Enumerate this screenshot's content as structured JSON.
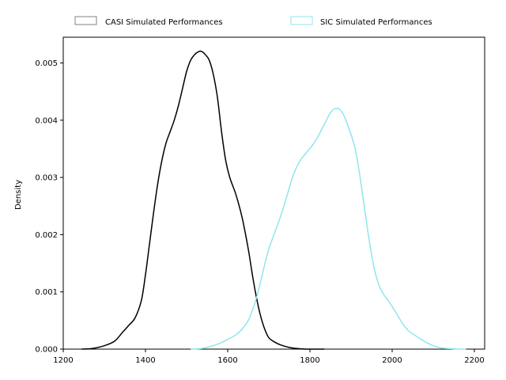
{
  "chart_data": {
    "type": "line",
    "title": "",
    "xlabel": "",
    "ylabel": "Density",
    "xlim": [
      1200,
      2225
    ],
    "ylim": [
      0,
      0.00545
    ],
    "x_ticks": [
      1200,
      1400,
      1600,
      1800,
      2000,
      2200
    ],
    "x_tick_labels": [
      "1200",
      "1400",
      "1600",
      "1800",
      "2000",
      "2200"
    ],
    "y_ticks": [
      0,
      0.001,
      0.002,
      0.003,
      0.004,
      0.005
    ],
    "y_tick_labels": [
      "0.000",
      "0.001",
      "0.002",
      "0.003",
      "0.004",
      "0.005"
    ],
    "legend_position": "top",
    "series": [
      {
        "name": "CASI Simulated Performances",
        "color": "#000000",
        "x": [
          1245,
          1270,
          1300,
          1325,
          1345,
          1360,
          1375,
          1390,
          1400,
          1410,
          1420,
          1430,
          1440,
          1450,
          1460,
          1470,
          1480,
          1490,
          1500,
          1510,
          1520,
          1530,
          1537,
          1545,
          1555,
          1565,
          1575,
          1585,
          1595,
          1605,
          1620,
          1635,
          1650,
          1660,
          1670,
          1680,
          1690,
          1700,
          1715,
          1730,
          1750,
          1770,
          1790,
          1810,
          1835
        ],
        "y": [
          0.0,
          1e-05,
          6e-05,
          0.00014,
          0.0003,
          0.00042,
          0.00055,
          0.00085,
          0.0013,
          0.00185,
          0.0024,
          0.0029,
          0.0033,
          0.0036,
          0.0038,
          0.004,
          0.00425,
          0.00455,
          0.00485,
          0.00505,
          0.00515,
          0.0052,
          0.0052,
          0.00515,
          0.00505,
          0.0048,
          0.0044,
          0.0038,
          0.0033,
          0.003,
          0.0027,
          0.0023,
          0.00175,
          0.0013,
          0.0009,
          0.00058,
          0.00035,
          0.0002,
          0.00012,
          7e-05,
          3e-05,
          1e-05,
          0.0,
          0.0,
          0.0
        ]
      },
      {
        "name": "SIC Simulated Performances",
        "color": "#8fe6ee",
        "x": [
          1510,
          1535,
          1560,
          1580,
          1600,
          1620,
          1635,
          1650,
          1660,
          1670,
          1680,
          1690,
          1700,
          1715,
          1730,
          1745,
          1760,
          1775,
          1790,
          1805,
          1820,
          1835,
          1850,
          1860,
          1870,
          1880,
          1890,
          1900,
          1910,
          1920,
          1930,
          1940,
          1950,
          1960,
          1970,
          1980,
          1995,
          2010,
          2025,
          2040,
          2060,
          2080,
          2100,
          2120,
          2140,
          2160,
          2180
        ],
        "y": [
          0.0,
          1e-05,
          5e-05,
          0.0001,
          0.00017,
          0.00025,
          0.00035,
          0.0005,
          0.00068,
          0.0009,
          0.00118,
          0.00148,
          0.00175,
          0.00205,
          0.00235,
          0.0027,
          0.00305,
          0.00328,
          0.00342,
          0.00355,
          0.00372,
          0.00393,
          0.00413,
          0.0042,
          0.0042,
          0.00412,
          0.00395,
          0.00375,
          0.0035,
          0.0031,
          0.0026,
          0.0021,
          0.00165,
          0.0013,
          0.00108,
          0.00095,
          0.0008,
          0.00063,
          0.00045,
          0.00032,
          0.00022,
          0.00013,
          6e-05,
          2e-05,
          1e-05,
          0.0,
          0.0
        ]
      }
    ]
  }
}
